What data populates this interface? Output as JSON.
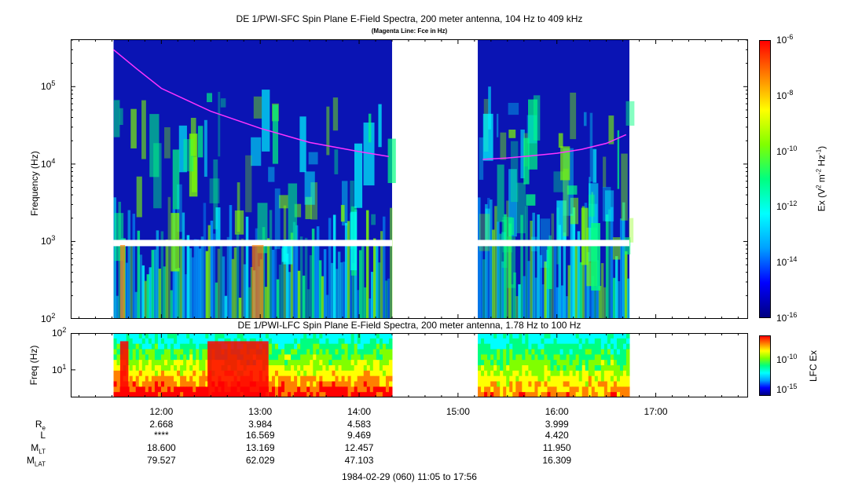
{
  "chart_data": [
    {
      "type": "heatmap",
      "title": "DE 1/PWI-SFC  Spin Plane E-Field Spectra, 200 meter antenna, 104 Hz to 409 kHz",
      "subtitle": "(Magenta Line: Fce in Hz)",
      "ylabel": "Frequency (Hz)",
      "yscale": "log",
      "ylim": [
        100,
        409000
      ],
      "yticks": [
        {
          "base": "10",
          "exp": "2"
        },
        {
          "base": "10",
          "exp": "3"
        },
        {
          "base": "10",
          "exp": "4"
        },
        {
          "base": "10",
          "exp": "5"
        }
      ],
      "colorbar": {
        "label_parts": [
          "Ex (V",
          "2",
          " m",
          "-2",
          " Hz",
          "-1",
          ")"
        ],
        "scale": "log",
        "range": [
          1e-16,
          1e-06
        ],
        "ticks": [
          {
            "base": "10",
            "exp": "-6"
          },
          {
            "base": "10",
            "exp": "-8"
          },
          {
            "base": "10",
            "exp": "-10"
          },
          {
            "base": "10",
            "exp": "-12"
          },
          {
            "base": "10",
            "exp": "-14"
          },
          {
            "base": "10",
            "exp": "-16"
          }
        ]
      },
      "data_intervals_utc": [
        [
          "11:31",
          "14:20"
        ],
        [
          "15:12",
          "16:44"
        ]
      ],
      "fce_line": {
        "color": "#ff33ff",
        "segments": [
          {
            "x": [
              "11:31",
              "11:45",
              "12:00",
              "12:30",
              "13:00",
              "13:30",
              "14:00",
              "14:18"
            ],
            "y": [
              300000,
              170000,
              95000,
              48000,
              29000,
              19000,
              14500,
              12500
            ]
          },
          {
            "x": [
              "15:15",
              "15:30",
              "15:45",
              "16:00",
              "16:15",
              "16:30",
              "16:42"
            ],
            "y": [
              11500,
              12000,
              12800,
              13800,
              15500,
              18500,
              24000
            ]
          }
        ]
      }
    },
    {
      "type": "heatmap",
      "title": "DE 1/PWI-LFC  Spin Plane E-Field Spectra, 200 meter antenna, 1.78 Hz to 100 Hz",
      "ylabel": "Freq (Hz)",
      "yscale": "log",
      "ylim": [
        1.78,
        100
      ],
      "yticks": [
        {
          "base": "10",
          "exp": "1"
        },
        {
          "base": "10",
          "exp": "2"
        }
      ],
      "colorbar": {
        "label": "LFC Ex",
        "scale": "log",
        "range": [
          1e-16,
          1e-06
        ],
        "ticks": [
          {
            "base": "10",
            "exp": "-10"
          },
          {
            "base": "10",
            "exp": "-15"
          }
        ]
      },
      "data_intervals_utc": [
        [
          "11:31",
          "14:20"
        ],
        [
          "15:12",
          "16:44"
        ]
      ]
    }
  ],
  "x_axis": {
    "ticks": [
      "12:00",
      "13:00",
      "14:00",
      "15:00",
      "16:00",
      "17:00"
    ],
    "range_utc": [
      "11:05",
      "17:56"
    ],
    "footer": "1984-02-29 (060) 11:05 to 17:56"
  },
  "ephemeris": {
    "rows": [
      {
        "label": "R",
        "sub": "e",
        "values": [
          "2.668",
          "3.984",
          "4.583",
          "",
          "3.999",
          ""
        ]
      },
      {
        "label": "L",
        "sub": "",
        "values": [
          "****",
          "16.569",
          "9.469",
          "",
          "4.420",
          ""
        ]
      },
      {
        "label": "M",
        "sub": "LT",
        "values": [
          "18.600",
          "13.169",
          "12.457",
          "",
          "11.950",
          ""
        ]
      },
      {
        "label": "M",
        "sub": "LAT",
        "values": [
          "79.527",
          "62.029",
          "47.103",
          "",
          "16.309",
          ""
        ]
      }
    ]
  },
  "colors": {
    "background_fill": "#0a14b4",
    "colormap": [
      "#000080",
      "#0000ff",
      "#00a0ff",
      "#00ffff",
      "#00ff80",
      "#80ff00",
      "#ffff00",
      "#ff8000",
      "#ff0000"
    ]
  }
}
